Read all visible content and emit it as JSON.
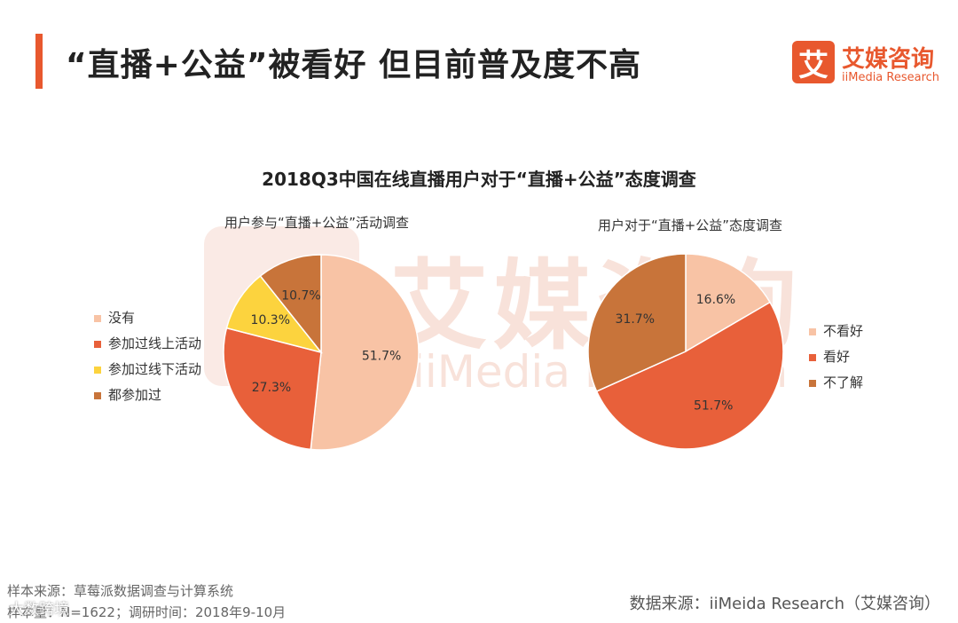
{
  "header": {
    "title": "“直播+公益”被看好 但目前普及度不高",
    "accent_color": "#e8582e"
  },
  "logo": {
    "icon_char": "艾",
    "name_cn": "艾媒咨询",
    "name_en": "iiMedia Research"
  },
  "watermark": {
    "icon_char": "艾",
    "text_cn": "艾媒咨询",
    "text_en": "iiMedia Research"
  },
  "chart_main_title": "2018Q3中国在线直播用户对于“直播+公益”态度调查",
  "chart_data": [
    {
      "type": "pie",
      "title": "用户参与“直播+公益”活动调查",
      "categories": [
        "没有",
        "参加过线上活动",
        "参加过线下活动",
        "都参加过"
      ],
      "values": [
        51.7,
        27.3,
        10.3,
        10.7
      ],
      "labels": [
        "51.7%",
        "27.3%",
        "10.3%",
        "10.7%"
      ],
      "colors": [
        "#f8c3a5",
        "#e8603a",
        "#fcd33e",
        "#c8743a"
      ],
      "legend_position": "left"
    },
    {
      "type": "pie",
      "title": "用户对于“直播+公益”态度调查",
      "categories": [
        "不看好",
        "看好",
        "不了解"
      ],
      "values": [
        16.6,
        51.7,
        31.7
      ],
      "labels": [
        "16.6%",
        "51.7%",
        "31.7%"
      ],
      "colors": [
        "#f8c3a5",
        "#e8603a",
        "#c8743a"
      ],
      "legend_position": "right"
    }
  ],
  "footer": {
    "source_sample": "样本来源：草莓派数据调查与计算系统",
    "sample_size": "样本量：N=1622；调研时间：2018年9-10月",
    "data_source": "数据来源：iiMeida Research（艾媒咨询）",
    "corner_mark": "大数跨境"
  }
}
